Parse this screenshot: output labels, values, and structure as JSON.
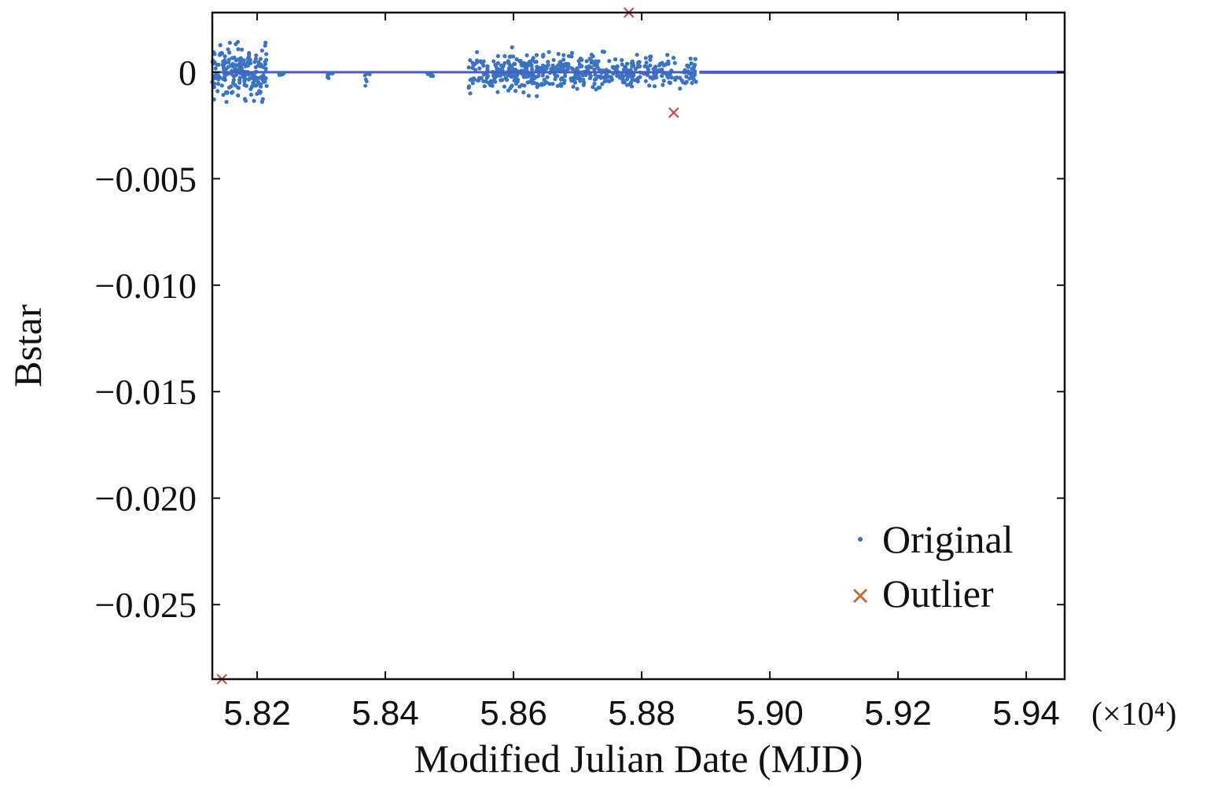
{
  "chart_data": {
    "type": "scatter",
    "xlabel": "Modified Julian Date (MJD)",
    "ylabel": "Bstar",
    "x_multiplier": "(×10⁴)",
    "xlim": [
      58130,
      59460
    ],
    "ylim": [
      -0.0285,
      0.0028
    ],
    "xticks": [
      58200,
      58400,
      58600,
      58800,
      59000,
      59200,
      59400
    ],
    "xtick_labels": [
      "5.82",
      "5.84",
      "5.86",
      "5.88",
      "5.90",
      "5.92",
      "5.94"
    ],
    "yticks": [
      0,
      -0.005,
      -0.01,
      -0.015,
      -0.02,
      -0.025
    ],
    "ytick_labels": [
      "0",
      "−0.005",
      "−0.010",
      "−0.015",
      "−0.020",
      "−0.025"
    ],
    "grid": false,
    "legend_position": "bottom-right",
    "colors": {
      "original": "#3a74c0",
      "line": "#4a5cc8",
      "outlier": "#c0504d",
      "outlier_legend": "#c0703a"
    },
    "series": [
      {
        "name": "Original",
        "marker": "dot",
        "clusters": [
          {
            "x_range": [
              58130,
              58215
            ],
            "y_spread": 0.0011,
            "n": 200
          },
          {
            "x_range": [
              58530,
              58575
            ],
            "y_spread": 0.0008,
            "n": 60
          },
          {
            "x_range": [
              58575,
              58640
            ],
            "y_spread": 0.0008,
            "n": 140
          },
          {
            "x_range": [
              58640,
              58705
            ],
            "y_spread": 0.0007,
            "n": 120
          },
          {
            "x_range": [
              58705,
              58790
            ],
            "y_spread": 0.0007,
            "n": 130
          },
          {
            "x_range": [
              58790,
              58885
            ],
            "y_spread": 0.0006,
            "n": 110
          }
        ],
        "line_x": [
          58130,
          58880,
          58890,
          59460
        ],
        "line_y": [
          0,
          0,
          0,
          0
        ]
      },
      {
        "name": "Outlier",
        "marker": "x",
        "points": [
          {
            "x": 58780,
            "y": 0.0028
          },
          {
            "x": 58850,
            "y": -0.0019
          },
          {
            "x": 58145,
            "y": -0.0285
          }
        ]
      }
    ]
  }
}
